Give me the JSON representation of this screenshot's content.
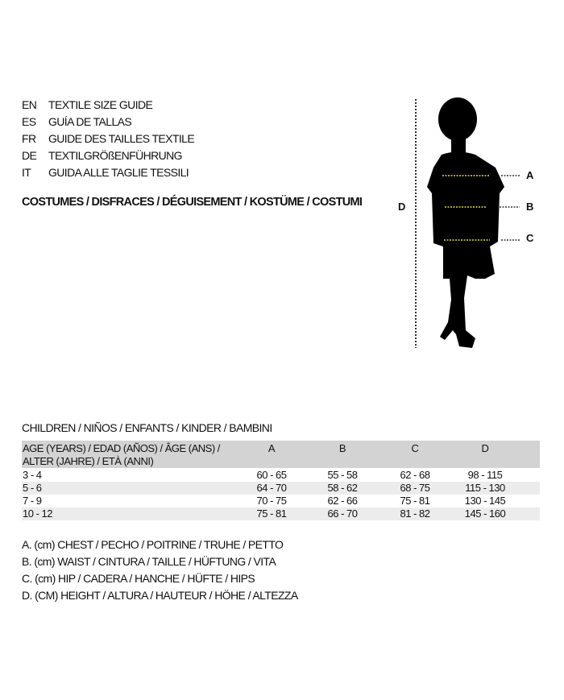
{
  "guide": {
    "languages": [
      {
        "code": "EN",
        "label": "TEXTILE SIZE GUIDE"
      },
      {
        "code": "ES",
        "label": "GUÍA DE TALLAS"
      },
      {
        "code": "FR",
        "label": "GUIDE DES TAILLES TEXTILE"
      },
      {
        "code": "DE",
        "label": "TEXTILGRÖßENFÜHRUNG"
      },
      {
        "code": "IT",
        "label": "GUIDA ALLE TAGLIE TESSILI"
      }
    ],
    "category": "COSTUMES / DISFRACES / DÉGUISEMENT / KOSTÜME / COSTUMI"
  },
  "figure": {
    "labels": {
      "a": "A",
      "b": "B",
      "c": "C",
      "d": "D"
    },
    "measure_line_color": "#e8d44d"
  },
  "table": {
    "title": "CHILDREN / NIÑOS / ENFANTS / KINDER / BAMBINI",
    "header_age_line1": "AGE (YEARS) / EDAD (AÑOS) / ÂGE (ANS) /",
    "header_age_line2": "ALTER (JAHRE) / ETÀ (ANNI)",
    "columns": [
      "A",
      "B",
      "C",
      "D"
    ],
    "rows": [
      {
        "age": "3 - 4",
        "values": [
          "60 - 65",
          "55 - 58",
          "62 - 68",
          "98 - 115"
        ]
      },
      {
        "age": "5 - 6",
        "values": [
          "64 - 70",
          "58 - 62",
          "68 - 75",
          "115 - 130"
        ]
      },
      {
        "age": "7 - 9",
        "values": [
          "70 - 75",
          "62 - 66",
          "75 - 81",
          "130 - 145"
        ]
      },
      {
        "age": "10 - 12",
        "values": [
          "75 - 81",
          "66 - 70",
          "81 - 82",
          "145 - 160"
        ]
      }
    ]
  },
  "legend": [
    "A. (cm) CHEST / PECHO / POITRINE / TRUHE / PETTO",
    "B. (cm) WAIST / CINTURA / TAILLE / HÜFTUNG / VITA",
    "C. (cm) HIP / CADERA / HANCHE / HÜFTE / HIPS",
    "D. (CM) HEIGHT / ALTURA / HAUTEUR / HÖHE / ALTEZZA"
  ]
}
